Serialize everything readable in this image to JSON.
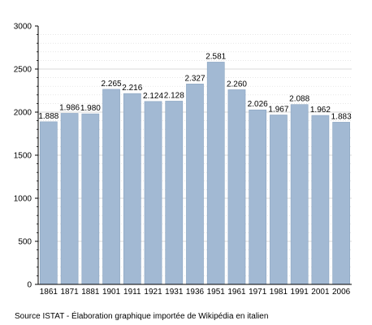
{
  "chart_data": {
    "type": "bar",
    "categories": [
      "1861",
      "1871",
      "1881",
      "1901",
      "1911",
      "1921",
      "1931",
      "1936",
      "1951",
      "1961",
      "1971",
      "1981",
      "1991",
      "2001",
      "2006"
    ],
    "values": [
      1888,
      1986,
      1980,
      2265,
      2216,
      2124,
      2128,
      2327,
      2581,
      2260,
      2026,
      1967,
      2088,
      1962,
      1883
    ],
    "value_labels": [
      "1.888",
      "1.986",
      "1.980",
      "2.265",
      "2.216",
      "2.124",
      "2.128",
      "2.327",
      "2.581",
      "2.260",
      "2.026",
      "1.967",
      "2.088",
      "1.962",
      "1.883"
    ],
    "yticks": [
      0,
      500,
      1000,
      1500,
      2000,
      2500,
      3000
    ],
    "ylim": [
      0,
      3000
    ],
    "grid": true,
    "bar_color": "#a2b9d3",
    "bar_edge_color": "#8aa4c0",
    "grid_color": "#d8d8d8",
    "title": "",
    "xlabel": "",
    "ylabel": ""
  },
  "source_note": "Source ISTAT - Élaboration graphique importée de Wikipédia en italien"
}
